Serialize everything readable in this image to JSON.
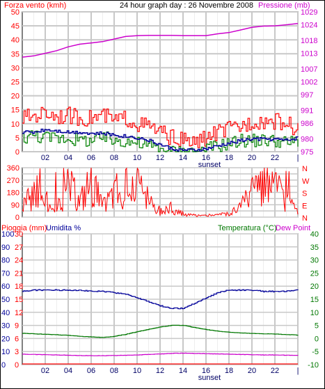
{
  "header": {
    "wind_label": "Forza vento (kmh)",
    "title": "24 hour graph day : 26 Novembre 2008",
    "pressure_label": "Pressione (mb)"
  },
  "middle_panel": {
    "compass_letters": [
      "N",
      "W",
      "S",
      "E",
      "N"
    ]
  },
  "bottom_header": {
    "rain_label": "Pioggia (mm)",
    "humidity_label": "Umidita %",
    "temp_label": "Temperatura (°C)",
    "dewpoint_label": "Dew Point"
  },
  "sunset_label": "sunset",
  "colors": {
    "wind_gust": "#ff0000",
    "wind_avg": "#008000",
    "pressure": "#cc00cc",
    "direction": "#ff0000",
    "humidity": "#000099",
    "temperature": "#007700",
    "dewpoint": "#cc00cc",
    "rain": "#ff0000",
    "grid": "#c8c8c8",
    "left_axis_wind": "#ff0000",
    "right_axis_pressure": "#cc00cc",
    "rain_axis": "#ff0000",
    "humidity_axis": "#000099",
    "temp_axis": "#007700"
  },
  "chart_data": [
    {
      "type": "line",
      "panel": "wind_pressure",
      "x_ticks": [
        "02",
        "04",
        "06",
        "08",
        "10",
        "12",
        "14",
        "16",
        "18",
        "20",
        "22",
        "|"
      ],
      "left_axis": {
        "ticks": [
          0,
          5,
          10,
          15,
          20,
          25,
          30,
          35,
          40,
          45,
          50
        ],
        "ylim": [
          0,
          50
        ]
      },
      "right_axis": {
        "ticks": [
          975,
          980,
          986,
          991,
          997,
          1002,
          1007,
          1013,
          1018,
          1024,
          1029
        ],
        "ylim": [
          975,
          1029
        ]
      },
      "series": [
        {
          "name": "Forza vento (kmh)",
          "key": "gust",
          "hours": [
            0,
            1,
            2,
            3,
            4,
            5,
            6,
            7,
            8,
            9,
            10,
            11,
            12,
            13,
            14,
            15,
            16,
            17,
            18,
            19,
            20,
            21,
            22,
            23,
            24
          ],
          "values": [
            12,
            13,
            14,
            13,
            13,
            12,
            12,
            13,
            11,
            12,
            10,
            9,
            7,
            5,
            4,
            3,
            5,
            7,
            8,
            9,
            11,
            11,
            11,
            10,
            8
          ]
        },
        {
          "key": "average",
          "hours": [
            0,
            1,
            2,
            3,
            4,
            5,
            6,
            7,
            8,
            9,
            10,
            11,
            12,
            13,
            14,
            15,
            16,
            17,
            18,
            19,
            20,
            21,
            22,
            23,
            24
          ],
          "values": [
            5,
            6,
            5,
            5,
            5,
            4,
            4,
            5,
            4,
            4,
            3,
            2,
            1,
            0,
            0,
            0,
            1,
            2,
            3,
            4,
            4,
            4,
            4,
            3,
            4
          ]
        },
        {
          "key": "average_blue",
          "hours": [
            0,
            1,
            2,
            3,
            4,
            5,
            6,
            7,
            8,
            9,
            10,
            11,
            12,
            13,
            14,
            15,
            16,
            17,
            18,
            19,
            20,
            21,
            22,
            23,
            24
          ],
          "values": [
            7,
            7,
            8,
            7.5,
            7,
            7,
            6.5,
            6.5,
            6,
            5.5,
            5,
            4,
            2.5,
            1,
            0.5,
            0.5,
            1,
            2,
            3,
            4,
            4.5,
            4.5,
            4.5,
            4,
            5
          ]
        },
        {
          "name": "Pressione (mb)",
          "key": "pressure",
          "axis": "right",
          "hours": [
            0,
            1,
            2,
            3,
            4,
            5,
            6,
            7,
            8,
            9,
            10,
            11,
            12,
            13,
            14,
            15,
            16,
            17,
            18,
            19,
            20,
            21,
            22,
            23,
            24
          ],
          "values": [
            1011.5,
            1012,
            1013,
            1014,
            1015.5,
            1016.5,
            1017,
            1017.5,
            1018.5,
            1019.5,
            1019.8,
            1019.9,
            1019.9,
            1019.9,
            1019.8,
            1019.8,
            1019.8,
            1020.5,
            1021,
            1022,
            1023,
            1023.5,
            1023.6,
            1024,
            1024.5
          ]
        }
      ]
    },
    {
      "type": "line",
      "panel": "wind_direction",
      "x_ticks": [
        "02",
        "04",
        "06",
        "08",
        "10",
        "12",
        "14",
        "16",
        "18",
        "20",
        "22",
        "|"
      ],
      "left_axis": {
        "ticks": [
          0,
          45,
          90,
          135,
          180,
          225,
          270,
          315,
          360
        ],
        "ylim": [
          0,
          360
        ]
      },
      "series": [
        {
          "key": "direction",
          "hours": [
            0,
            1,
            2,
            3,
            4,
            5,
            6,
            7,
            8,
            9,
            10,
            11,
            12,
            13,
            14,
            15,
            16,
            17,
            18,
            19,
            20,
            21,
            22,
            23,
            24
          ],
          "values": [
            60,
            180,
            110,
            40,
            200,
            90,
            230,
            60,
            150,
            80,
            190,
            100,
            40,
            70,
            20,
            10,
            10,
            15,
            20,
            60,
            140,
            200,
            180,
            100,
            50
          ]
        }
      ]
    },
    {
      "type": "line",
      "panel": "rain_humidity_temperature",
      "x_ticks": [
        "02",
        "04",
        "06",
        "08",
        "10",
        "12",
        "14",
        "16",
        "18",
        "20",
        "22",
        "|"
      ],
      "rain_axis": {
        "ticks": [
          0,
          3,
          6,
          9,
          12,
          15,
          18,
          21,
          24,
          27,
          30
        ],
        "ylim": [
          0,
          30
        ]
      },
      "humidity_axis": {
        "ticks": [
          0,
          10,
          20,
          30,
          40,
          50,
          60,
          70,
          80,
          90,
          100
        ],
        "ylim": [
          0,
          100
        ]
      },
      "temp_axis": {
        "ticks": [
          -10,
          -5,
          0,
          5,
          10,
          15,
          20,
          25,
          30,
          35,
          40
        ],
        "ylim": [
          -10,
          40
        ]
      },
      "series": [
        {
          "name": "Umidita %",
          "key": "humidity",
          "axis": "humidity",
          "hours": [
            0,
            1,
            2,
            3,
            4,
            5,
            6,
            7,
            8,
            9,
            10,
            11,
            12,
            13,
            14,
            15,
            16,
            17,
            18,
            19,
            20,
            21,
            22,
            23,
            24
          ],
          "values": [
            56,
            57,
            57,
            57,
            57,
            57,
            56,
            56,
            55,
            54,
            51,
            48,
            45,
            43,
            43,
            47,
            51,
            55,
            57,
            57,
            57,
            56,
            56,
            56,
            57
          ]
        },
        {
          "name": "Temperatura (°C)",
          "key": "temperature",
          "axis": "temp",
          "hours": [
            0,
            1,
            2,
            3,
            4,
            5,
            6,
            7,
            8,
            9,
            10,
            11,
            12,
            13,
            14,
            15,
            16,
            17,
            18,
            19,
            20,
            21,
            22,
            23,
            24
          ],
          "values": [
            2,
            1.8,
            1.6,
            1.4,
            1.2,
            0.8,
            0.6,
            0.4,
            0.8,
            1.6,
            2.6,
            3.5,
            4.4,
            5.0,
            5.0,
            4.2,
            3.4,
            2.8,
            2.4,
            2.1,
            1.9,
            1.8,
            1.7,
            1.5,
            1.3
          ]
        },
        {
          "name": "Dew Point",
          "key": "dewpoint",
          "axis": "temp",
          "hours": [
            0,
            1,
            2,
            3,
            4,
            5,
            6,
            7,
            8,
            9,
            10,
            11,
            12,
            13,
            14,
            15,
            16,
            17,
            18,
            19,
            20,
            21,
            22,
            23,
            24
          ],
          "values": [
            -6.0,
            -6.1,
            -6.2,
            -6.3,
            -6.4,
            -6.5,
            -6.6,
            -6.6,
            -6.5,
            -6.4,
            -6.3,
            -6.1,
            -5.9,
            -5.7,
            -5.6,
            -5.7,
            -5.8,
            -5.9,
            -6.0,
            -6.1,
            -6.2,
            -6.3,
            -6.3,
            -6.4,
            -6.5
          ]
        },
        {
          "name": "Pioggia (mm)",
          "key": "rain",
          "axis": "rain",
          "hours": [
            0,
            24
          ],
          "values": [
            0,
            0
          ]
        }
      ]
    }
  ]
}
